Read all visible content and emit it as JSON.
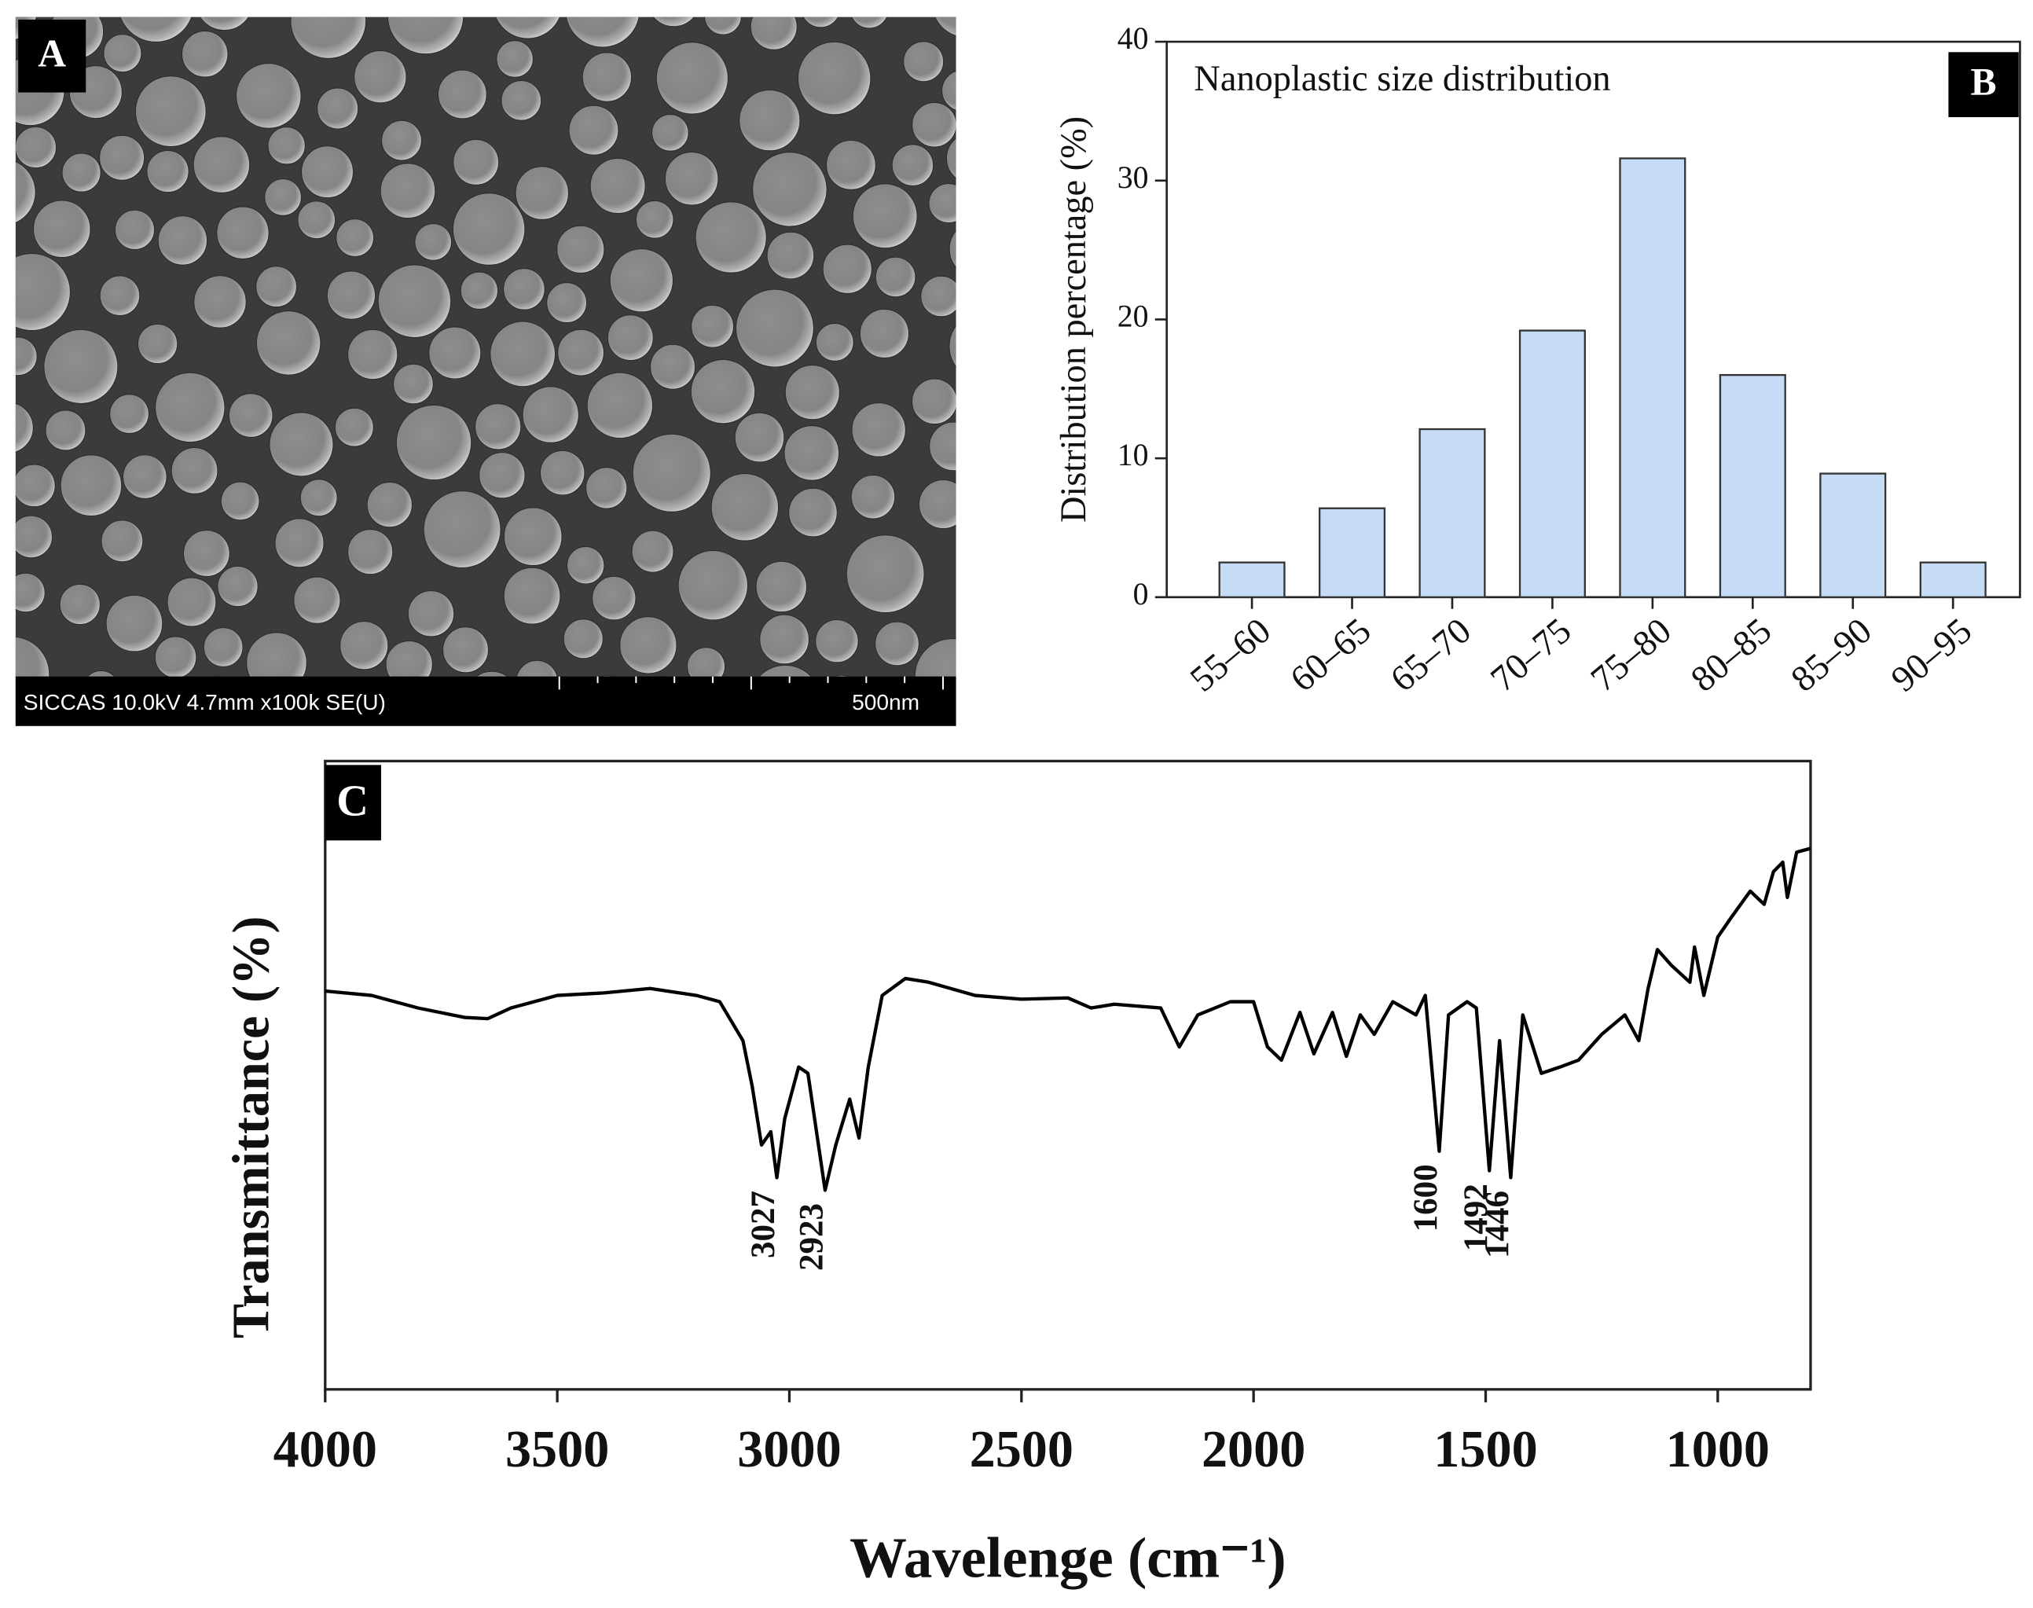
{
  "image_panel": {
    "label": "A",
    "caption": "SICCAS 10.0kV 4.7mm x100k SE(U)",
    "scale_bar": "500nm"
  },
  "chart_data": [
    {
      "type": "bar",
      "panel_label": "B",
      "title": "Nanoplastic size distribution",
      "y_label": "Distribution percentage (%)",
      "categories": [
        "55–60",
        "60–65",
        "65–70",
        "70–75",
        "75–80",
        "80–85",
        "85–90",
        "90–95"
      ],
      "values": [
        2.5,
        6.4,
        12.1,
        19.2,
        31.6,
        16.0,
        8.9,
        2.5
      ],
      "color": "#c6dcf6",
      "ylim": [
        0,
        40
      ],
      "yticks": [
        0,
        10,
        20,
        30,
        40
      ]
    },
    {
      "type": "line",
      "panel_label": "C",
      "x_label": "Wavelenge (cm⁻¹)",
      "y_label": "Transmittance (%)",
      "color": "#000000",
      "x": [
        4000,
        3900,
        3800,
        3700,
        3650,
        3600,
        3500,
        3400,
        3300,
        3200,
        3150,
        3100,
        3080,
        3060,
        3040,
        3027,
        3010,
        2980,
        2960,
        2923,
        2900,
        2870,
        2850,
        2830,
        2800,
        2750,
        2700,
        2600,
        2500,
        2400,
        2350,
        2300,
        2200,
        2160,
        2120,
        2050,
        2000,
        1970,
        1940,
        1900,
        1870,
        1830,
        1800,
        1770,
        1740,
        1700,
        1650,
        1630,
        1600,
        1580,
        1540,
        1520,
        1492,
        1470,
        1446,
        1420,
        1380,
        1340,
        1300,
        1250,
        1200,
        1170,
        1150,
        1130,
        1100,
        1060,
        1050,
        1030,
        1000,
        970,
        930,
        900,
        880,
        860,
        850,
        830,
        800
      ],
      "values": [
        63.4,
        62.7,
        60.7,
        59.2,
        59.0,
        60.7,
        62.7,
        63.1,
        63.8,
        62.7,
        61.7,
        55.5,
        48.2,
        38.9,
        41.0,
        33.7,
        43.1,
        51.3,
        50.3,
        31.7,
        38.9,
        46.2,
        40.0,
        51.3,
        62.7,
        65.4,
        64.8,
        62.7,
        62.1,
        62.3,
        60.7,
        61.3,
        60.7,
        54.5,
        59.6,
        61.7,
        61.7,
        54.5,
        52.4,
        60.0,
        53.4,
        60.0,
        53.0,
        59.6,
        56.5,
        61.7,
        59.6,
        62.7,
        37.9,
        59.6,
        61.7,
        60.7,
        34.8,
        55.5,
        33.7,
        59.6,
        50.3,
        51.3,
        52.4,
        56.5,
        59.6,
        55.5,
        63.8,
        70.0,
        67.5,
        64.8,
        70.4,
        62.7,
        72.0,
        75.2,
        79.3,
        77.2,
        82.4,
        83.9,
        78.3,
        85.5,
        86.1
      ],
      "xlim": [
        4000,
        800
      ],
      "xticks": [
        4000,
        3500,
        3000,
        2500,
        2000,
        1500,
        1000
      ],
      "ylim": [
        0,
        100
      ],
      "peaks": [
        3027,
        2923,
        1600,
        1492,
        1446
      ]
    }
  ]
}
